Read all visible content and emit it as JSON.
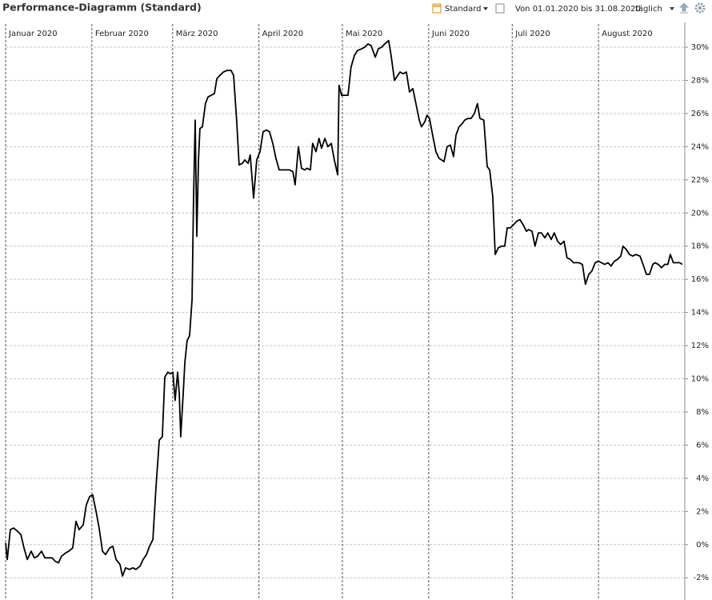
{
  "toolbar": {
    "view": "Standard",
    "range": "Von 01.01.2020 bis 31.08.2020",
    "interval": "täglich"
  },
  "chart_data": {
    "type": "line",
    "title": "Performance-Diagramm (Standard)",
    "color": "#000000",
    "grid": true,
    "xlim": [
      0,
      244
    ],
    "xticks": [
      {
        "value": 0,
        "label": "Januar 2020"
      },
      {
        "value": 31,
        "label": "Februar 2020"
      },
      {
        "value": 60,
        "label": "März 2020"
      },
      {
        "value": 91,
        "label": "April 2020"
      },
      {
        "value": 121,
        "label": "Mai 2020"
      },
      {
        "value": 152,
        "label": "Juni 2020"
      },
      {
        "value": 182,
        "label": "Juli 2020"
      },
      {
        "value": 213,
        "label": "August 2020"
      }
    ],
    "ylim": [
      -3.1,
      31.4
    ],
    "yticks": [
      {
        "value": -2,
        "label": "-2%"
      },
      {
        "value": 0,
        "label": "0%"
      },
      {
        "value": 2,
        "label": "2%"
      },
      {
        "value": 4,
        "label": "4%"
      },
      {
        "value": 6,
        "label": "6%"
      },
      {
        "value": 8,
        "label": "8%"
      },
      {
        "value": 10,
        "label": "10%"
      },
      {
        "value": 12,
        "label": "12%"
      },
      {
        "value": 14,
        "label": "14%"
      },
      {
        "value": 16,
        "label": "16%"
      },
      {
        "value": 18,
        "label": "18%"
      },
      {
        "value": 20,
        "label": "20%"
      },
      {
        "value": 22,
        "label": "22%"
      },
      {
        "value": 24,
        "label": "24%"
      },
      {
        "value": 26,
        "label": "26%"
      },
      {
        "value": 28,
        "label": "28%"
      },
      {
        "value": 30,
        "label": "30%"
      }
    ],
    "x": [
      0.0,
      0.6,
      1.7,
      2.9,
      4.3,
      5.5,
      6.6,
      7.8,
      9.2,
      10.3,
      11.5,
      12.9,
      14.1,
      15.2,
      16.7,
      17.8,
      19.0,
      20.1,
      21.6,
      22.7,
      24.1,
      25.3,
      26.4,
      27.9,
      29.0,
      30.2,
      31.3,
      32.5,
      33.6,
      34.8,
      35.9,
      37.4,
      38.5,
      39.7,
      41.1,
      42.0,
      43.1,
      44.5,
      45.7,
      46.8,
      48.3,
      49.4,
      50.6,
      51.7,
      52.9,
      54.0,
      55.2,
      56.3,
      57.2,
      58.3,
      59.2,
      60.1,
      60.9,
      61.8,
      62.4,
      62.9,
      63.8,
      64.4,
      65.2,
      66.1,
      67.0,
      67.5,
      68.1,
      68.7,
      69.3,
      69.8,
      70.7,
      71.8,
      72.7,
      73.9,
      75.0,
      75.9,
      77.0,
      78.2,
      79.6,
      81.0,
      81.9,
      83.0,
      83.9,
      85.1,
      85.9,
      87.1,
      87.9,
      89.1,
      90.2,
      91.4,
      92.5,
      93.7,
      94.8,
      96.0,
      97.1,
      98.3,
      99.4,
      100.6,
      102.0,
      103.2,
      104.0,
      105.2,
      106.3,
      107.5,
      108.3,
      109.5,
      110.3,
      111.5,
      112.6,
      113.5,
      114.7,
      115.8,
      117.0,
      118.1,
      119.3,
      119.8,
      120.7,
      121.6,
      123.0,
      124.1,
      125.3,
      126.4,
      127.9,
      129.0,
      130.2,
      131.3,
      132.8,
      133.9,
      135.1,
      136.2,
      137.6,
      138.5,
      139.7,
      140.5,
      141.7,
      142.8,
      144.0,
      145.1,
      146.3,
      147.4,
      148.6,
      149.4,
      150.6,
      151.4,
      152.3,
      153.4,
      154.6,
      155.7,
      156.6,
      157.5,
      158.6,
      159.8,
      160.9,
      161.8,
      162.9,
      164.1,
      164.9,
      166.1,
      167.2,
      168.4,
      169.5,
      170.4,
      171.8,
      173.0,
      173.9,
      175.0,
      175.9,
      177.0,
      178.2,
      179.3,
      180.2,
      181.3,
      182.5,
      183.6,
      184.8,
      185.9,
      187.1,
      187.9,
      189.1,
      190.2,
      191.4,
      192.5,
      193.7,
      194.8,
      196.0,
      197.1,
      198.3,
      199.4,
      200.6,
      201.7,
      202.9,
      204.0,
      204.9,
      206.0,
      207.2,
      208.3,
      209.5,
      210.6,
      211.8,
      212.9,
      214.1,
      215.2,
      216.4,
      217.5,
      218.7,
      219.8,
      221.0,
      221.8,
      223.0,
      224.1,
      225.3,
      226.4,
      227.9,
      229.0,
      230.2,
      231.3,
      232.5,
      233.3,
      234.5,
      235.6,
      236.8,
      237.9,
      238.8,
      239.9,
      241.1,
      242.2,
      243.1
    ],
    "values": [
      0.1,
      -0.9,
      0.9,
      1.0,
      0.8,
      0.6,
      -0.2,
      -0.9,
      -0.4,
      -0.8,
      -0.7,
      -0.4,
      -0.8,
      -0.8,
      -0.8,
      -1.0,
      -1.1,
      -0.7,
      -0.5,
      -0.4,
      -0.2,
      1.4,
      0.9,
      1.2,
      2.4,
      2.9,
      3.0,
      2.0,
      1.0,
      -0.4,
      -0.6,
      -0.2,
      -0.1,
      -0.9,
      -1.2,
      -1.9,
      -1.4,
      -1.5,
      -1.4,
      -1.5,
      -1.3,
      -0.9,
      -0.6,
      -0.1,
      0.3,
      3.4,
      6.3,
      6.5,
      10.1,
      10.4,
      10.3,
      10.4,
      8.7,
      10.4,
      9.1,
      6.5,
      9.1,
      11.0,
      12.3,
      12.6,
      14.8,
      20.8,
      25.6,
      18.6,
      23.2,
      25.1,
      25.2,
      26.6,
      27.0,
      27.1,
      27.2,
      28.1,
      28.3,
      28.5,
      28.6,
      28.6,
      28.3,
      25.6,
      22.9,
      23.0,
      23.2,
      23.0,
      23.5,
      20.9,
      23.2,
      23.7,
      24.9,
      25.0,
      24.9,
      24.2,
      23.3,
      22.6,
      22.6,
      22.6,
      22.6,
      22.5,
      21.7,
      24.0,
      22.7,
      22.6,
      22.7,
      22.6,
      24.2,
      23.7,
      24.5,
      23.9,
      24.5,
      24.0,
      24.2,
      23.2,
      22.3,
      27.7,
      27.1,
      27.1,
      27.1,
      28.8,
      29.5,
      29.8,
      29.9,
      30.0,
      30.2,
      30.1,
      29.4,
      29.9,
      30.0,
      30.2,
      30.4,
      29.5,
      28.0,
      28.2,
      28.5,
      28.4,
      28.5,
      27.3,
      27.5,
      26.6,
      25.6,
      25.2,
      25.5,
      25.9,
      25.7,
      24.7,
      23.7,
      23.3,
      23.2,
      23.1,
      24.0,
      24.1,
      23.4,
      24.7,
      25.2,
      25.4,
      25.6,
      25.7,
      25.7,
      26.0,
      26.6,
      25.7,
      25.6,
      22.8,
      22.6,
      21.0,
      17.5,
      17.9,
      18.0,
      18.0,
      19.1,
      19.1,
      19.3,
      19.5,
      19.6,
      19.3,
      18.9,
      19.0,
      18.9,
      18.0,
      18.8,
      18.8,
      18.5,
      18.8,
      18.4,
      18.8,
      18.3,
      18.1,
      18.3,
      17.3,
      17.2,
      17.0,
      17.0,
      17.0,
      16.9,
      15.7,
      16.3,
      16.5,
      17.0,
      17.1,
      17.0,
      16.9,
      17.0,
      16.8,
      17.1,
      17.2,
      17.4,
      18.0,
      17.8,
      17.5,
      17.4,
      17.5,
      17.4,
      16.9,
      16.3,
      16.3,
      16.9,
      17.0,
      16.9,
      16.7,
      16.9,
      16.9,
      17.5,
      17.0,
      17.0,
      17.0,
      16.9
    ]
  }
}
